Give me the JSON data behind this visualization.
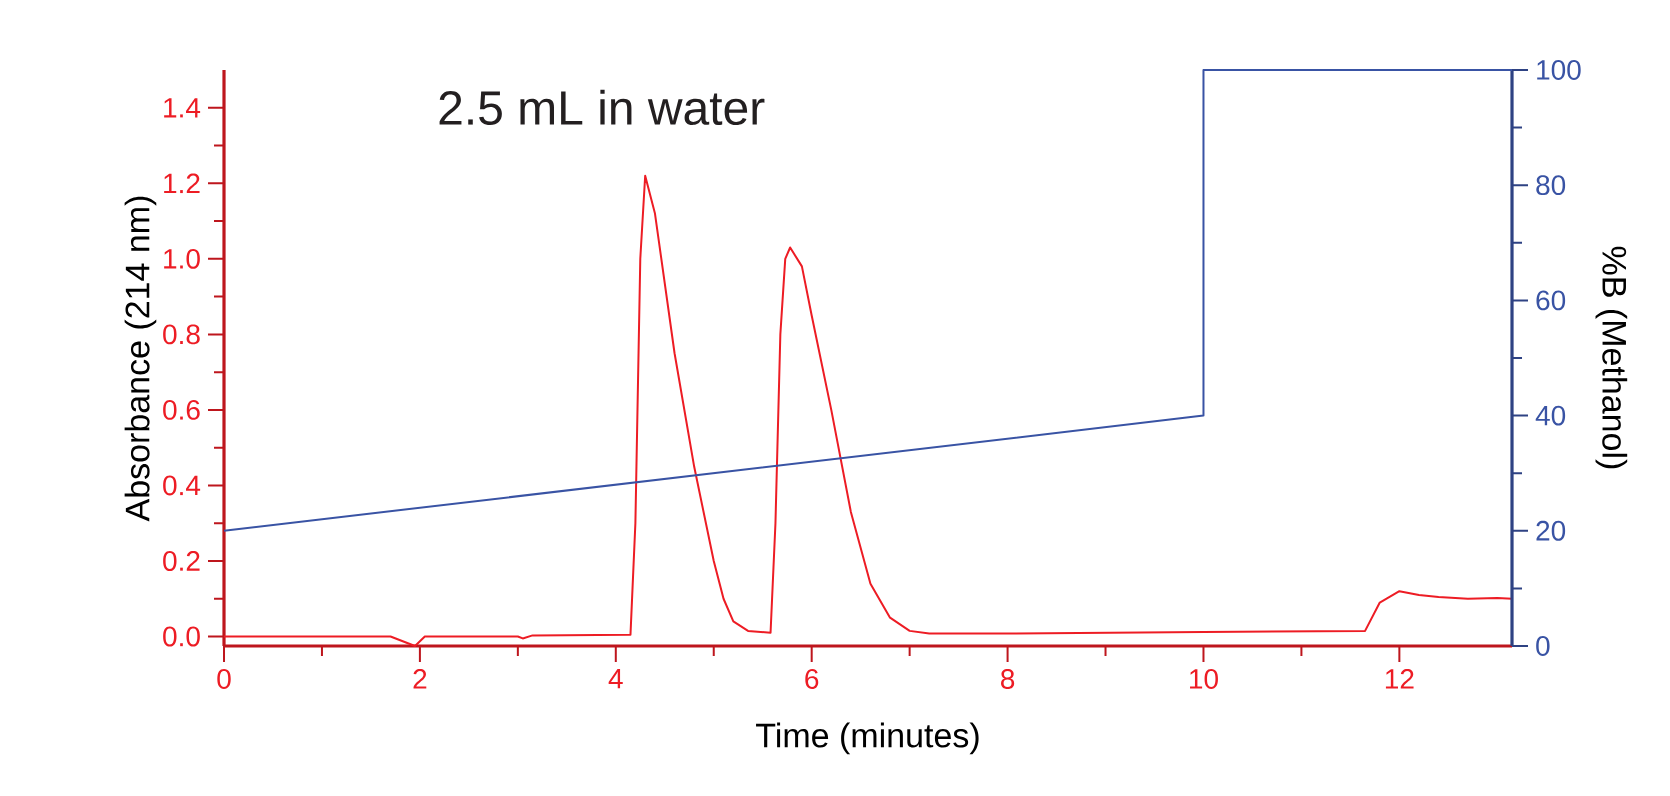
{
  "chart_data": {
    "type": "line",
    "xlabel": "Time (minutes)",
    "ylabel": "Absorbance (214 nm)",
    "y2label": "%B (Methanol)",
    "annotations": [
      "2.5 mL in water"
    ],
    "xlim": [
      0,
      13.15
    ],
    "ylim": [
      -0.025,
      1.5
    ],
    "y2lim": [
      0,
      100
    ],
    "xticks": [
      0,
      2,
      4,
      6,
      8,
      10,
      12
    ],
    "yticks": [
      {
        "value": 0,
        "label": "0.0"
      },
      {
        "value": 0.2,
        "label": "0.2"
      },
      {
        "value": 0.4,
        "label": "0.4"
      },
      {
        "value": 0.6,
        "label": "0.6"
      },
      {
        "value": 0.8,
        "label": "0.8"
      },
      {
        "value": 1.0,
        "label": "1.0"
      },
      {
        "value": 1.2,
        "label": "1.2"
      },
      {
        "value": 1.4,
        "label": "1.4"
      }
    ],
    "y2ticks": [
      0,
      20,
      40,
      60,
      80,
      100
    ],
    "series": [
      {
        "color": "#ed1c24",
        "x": [
          0,
          1.7,
          1.95,
          2.05,
          3.0,
          3.05,
          3.15,
          4.15,
          4.2,
          4.25,
          4.3,
          4.4,
          4.6,
          4.8,
          5.0,
          5.1,
          5.2,
          5.35,
          5.58,
          5.63,
          5.68,
          5.73,
          5.78,
          5.9,
          6.0,
          6.2,
          6.4,
          6.6,
          6.8,
          7.0,
          7.2,
          8.0,
          10.0,
          11.65,
          11.8,
          12.0,
          12.2,
          12.4,
          12.7,
          13.0,
          13.15
        ],
        "values": [
          0,
          0,
          -0.025,
          0,
          0,
          -0.005,
          0.003,
          0.005,
          0.3,
          1.0,
          1.22,
          1.12,
          0.75,
          0.45,
          0.2,
          0.1,
          0.04,
          0.015,
          0.01,
          0.3,
          0.8,
          1.0,
          1.03,
          0.98,
          0.85,
          0.6,
          0.33,
          0.14,
          0.05,
          0.015,
          0.008,
          0.008,
          0.012,
          0.015,
          0.09,
          0.12,
          0.11,
          0.105,
          0.1,
          0.102,
          0.1
        ]
      },
      {
        "color": "#3953a4",
        "axis": "y2",
        "x": [
          0,
          10,
          10,
          13.15
        ],
        "values": [
          20,
          40,
          100,
          100
        ]
      }
    ]
  }
}
